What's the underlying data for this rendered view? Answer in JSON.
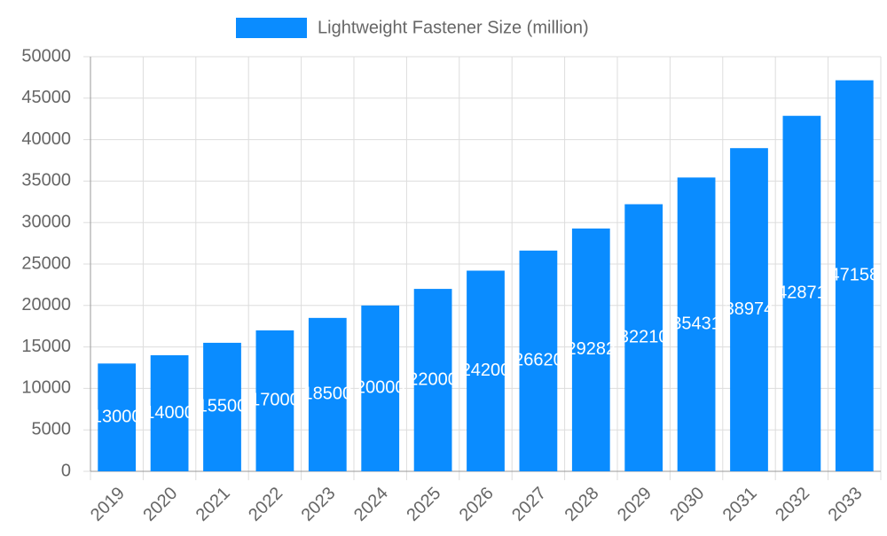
{
  "chart_data": {
    "type": "bar",
    "categories": [
      "2019",
      "2020",
      "2021",
      "2022",
      "2023",
      "2024",
      "2025",
      "2026",
      "2027",
      "2028",
      "2029",
      "2030",
      "2031",
      "2032",
      "2033"
    ],
    "series": [
      {
        "name": "Lightweight Fastener Size (million)",
        "color": "#0a8cff",
        "values": [
          13000,
          14000,
          15500,
          17000,
          18500,
          20000,
          22000,
          24200,
          26620,
          29282,
          32210,
          35431,
          38974,
          42871,
          47158
        ]
      }
    ],
    "ylim": [
      0,
      50000
    ],
    "yticks": [
      0,
      5000,
      10000,
      15000,
      20000,
      25000,
      30000,
      35000,
      40000,
      45000,
      50000
    ],
    "grid": true,
    "legend": "top"
  }
}
